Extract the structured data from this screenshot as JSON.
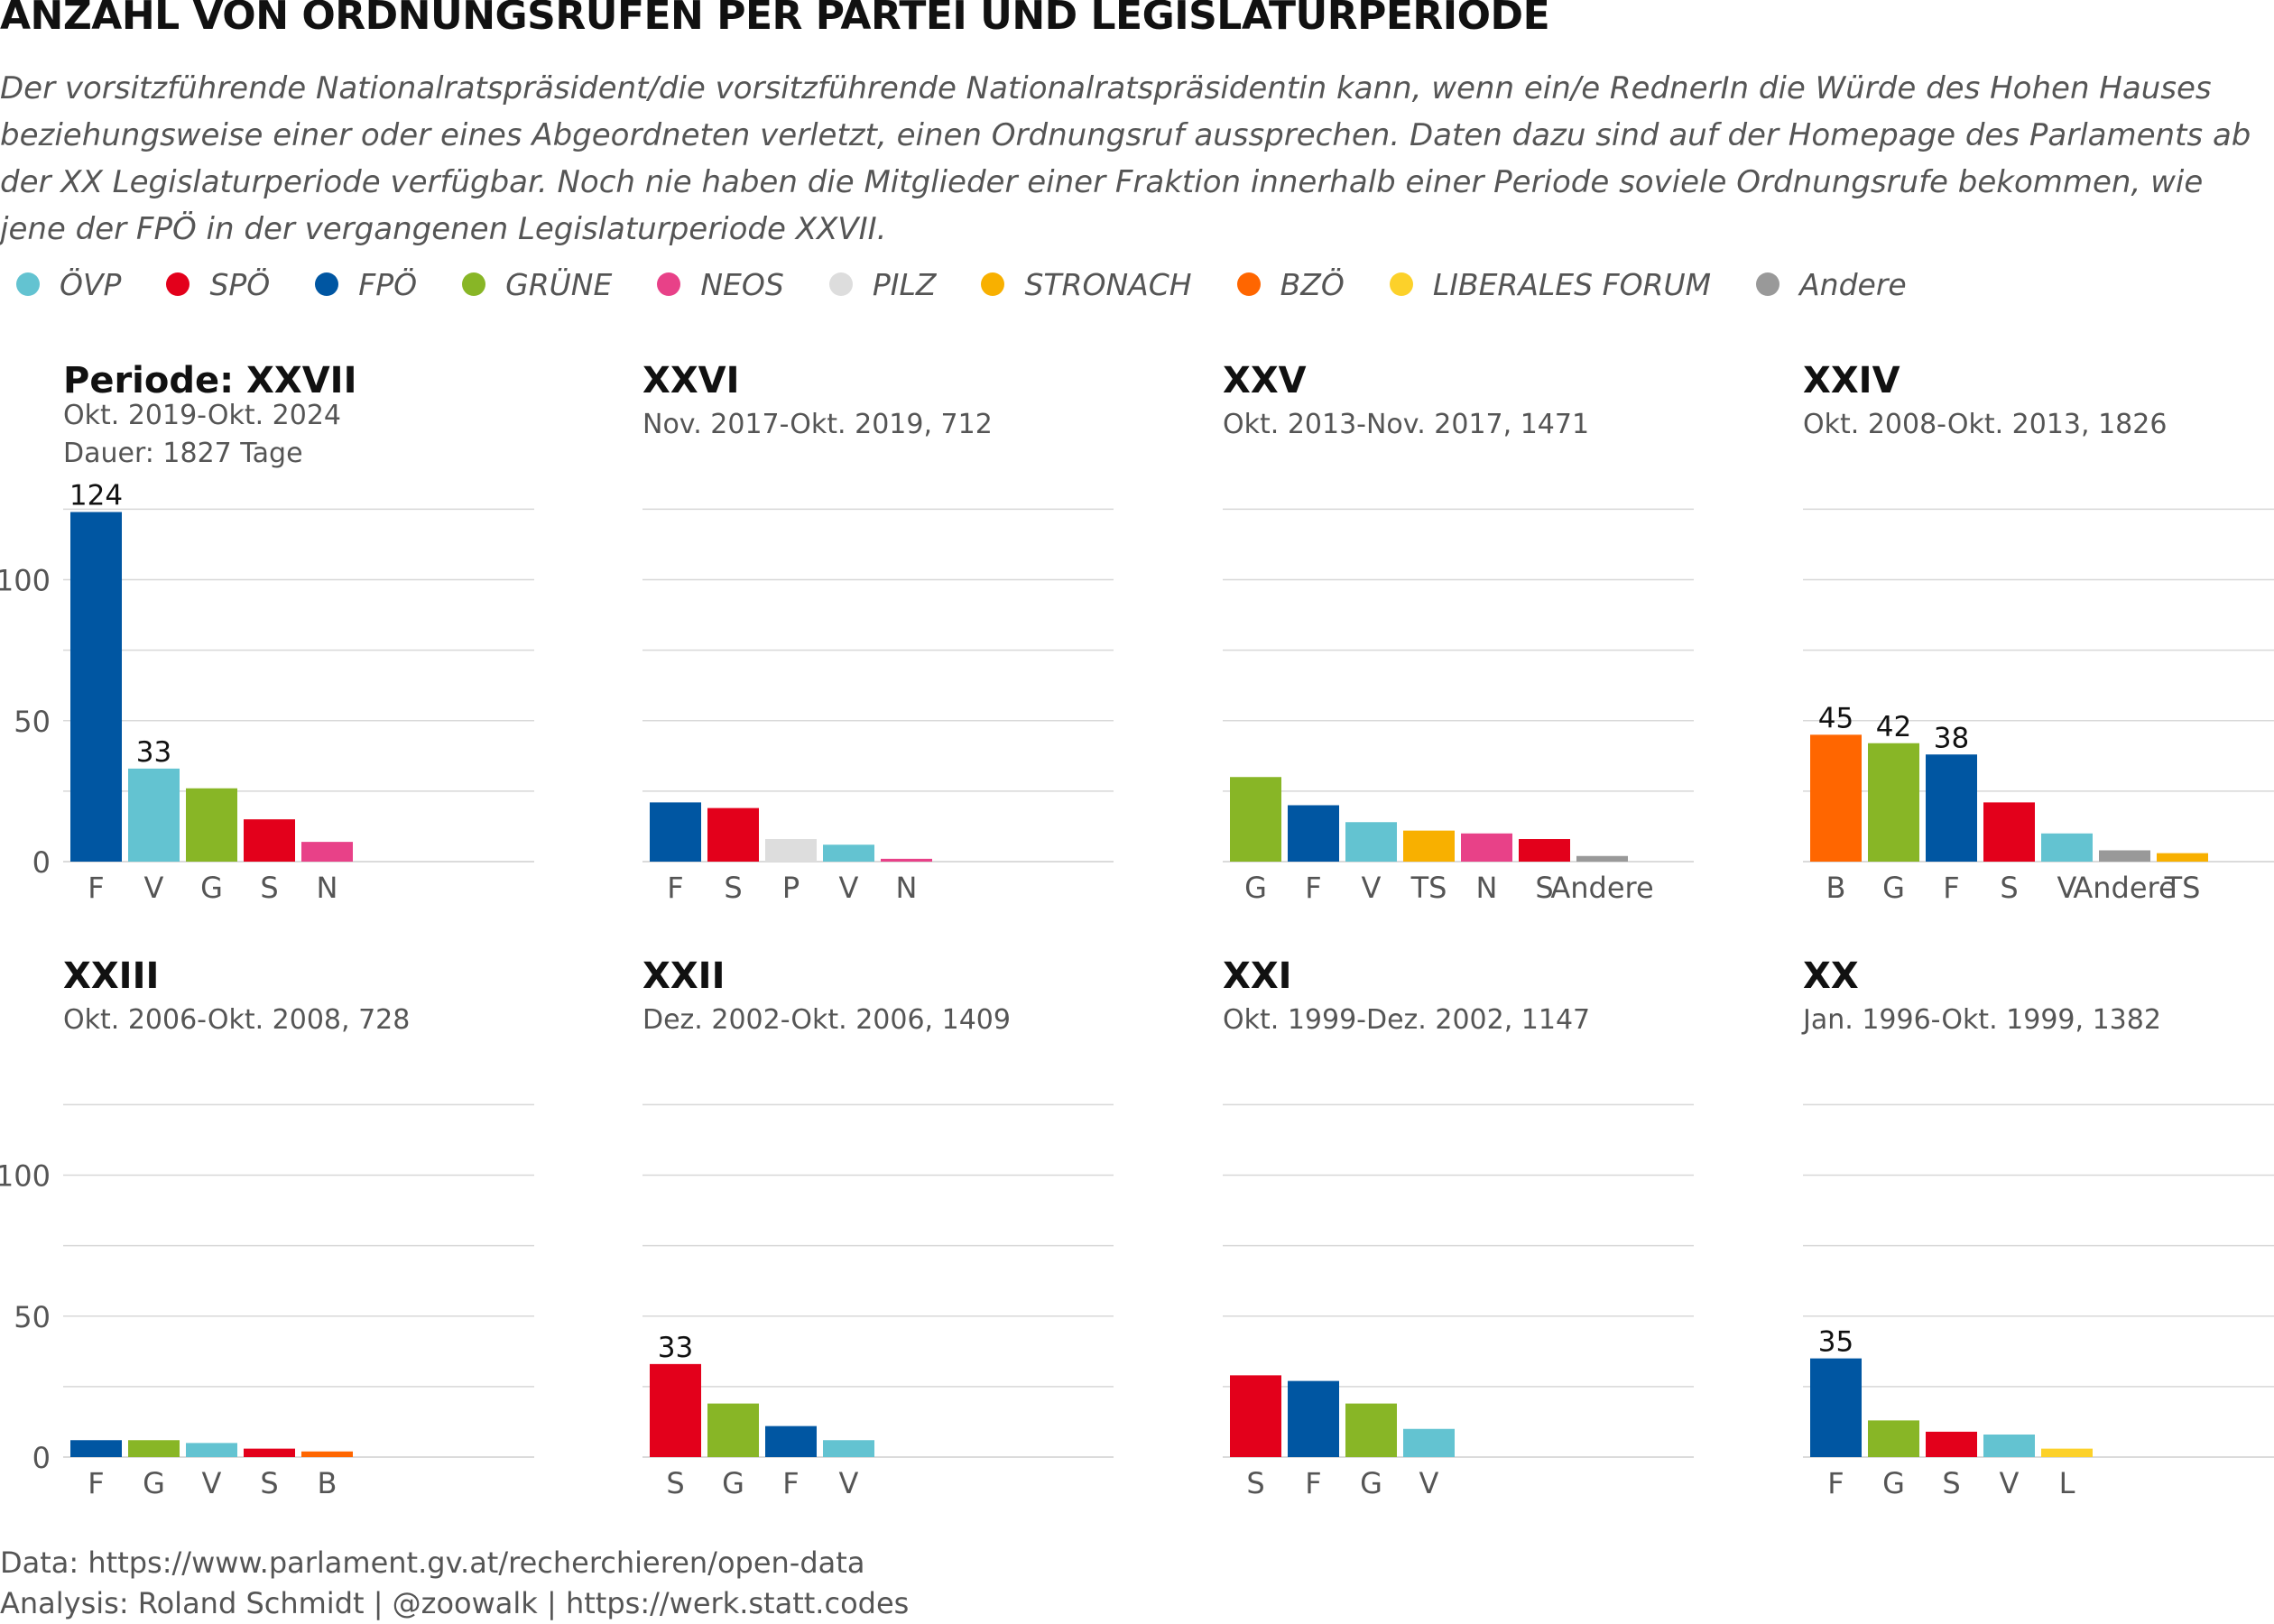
{
  "title": "ANZAHL VON ORDNUNGSRUFEN PER PARTEI UND LEGISLATURPERIODE",
  "subtitle": "Der vorsitzführende Nationalratspräsident/die vorsitzführende Nationalratspräsidentin kann, wenn ein/e RednerIn die Würde des Hohen Hauses beziehungsweise einer oder eines Abgeordneten verletzt, einen Ordnungsruf aussprechen. Daten dazu sind auf der Homepage des Parlaments ab der XX Legislaturperiode verfügbar. Noch nie haben die Mitglieder einer Fraktion innerhalb einer Periode soviele Ordnungsrufe bekommen, wie jene der FPÖ in der vergangenen Legislaturperiode XXVII.",
  "legend": [
    {
      "key": "V",
      "label": "ÖVP",
      "color": "#63c3d1"
    },
    {
      "key": "S",
      "label": "SPÖ",
      "color": "#e3001b"
    },
    {
      "key": "F",
      "label": "FPÖ",
      "color": "#0056a2"
    },
    {
      "key": "G",
      "label": "GRÜNE",
      "color": "#88b626"
    },
    {
      "key": "N",
      "label": "NEOS",
      "color": "#e84188"
    },
    {
      "key": "P",
      "label": "PILZ",
      "color": "#dddddd"
    },
    {
      "key": "TS",
      "label": "STRONACH",
      "color": "#f8b000"
    },
    {
      "key": "B",
      "label": "BZÖ",
      "color": "#ff6600"
    },
    {
      "key": "L",
      "label": "LIBERALES FORUM",
      "color": "#fcd12a"
    },
    {
      "key": "Andere",
      "label": "Andere",
      "color": "#999999"
    }
  ],
  "footer": {
    "data_source": "Data: https://www.parlament.gv.at/recherchieren/open-data",
    "analysis": "Analysis: Roland Schmidt | @zoowalk | https://werk.statt.codes"
  },
  "chart_data": {
    "type": "bar",
    "layout": "small-multiples",
    "y_ticks": [
      0,
      50,
      100
    ],
    "ylim": [
      0,
      128
    ],
    "grid": true,
    "legend_position": "top",
    "panels": [
      {
        "title": "Periode: XXVII",
        "subtitle": "Okt. 2019-Okt. 2024",
        "subtitle2": "Dauer: 1827 Tage",
        "categories": [
          "F",
          "V",
          "G",
          "S",
          "N"
        ],
        "values": [
          124,
          33,
          26,
          15,
          7
        ],
        "labels": [
          "124",
          "33",
          "",
          "",
          ""
        ]
      },
      {
        "title": "XXVI",
        "subtitle": "Nov. 2017-Okt. 2019, 712",
        "categories": [
          "F",
          "S",
          "P",
          "V",
          "N"
        ],
        "values": [
          21,
          19,
          8,
          6,
          1
        ],
        "labels": [
          "",
          "",
          "",
          "",
          ""
        ]
      },
      {
        "title": "XXV",
        "subtitle": "Okt. 2013-Nov. 2017, 1471",
        "categories": [
          "G",
          "F",
          "V",
          "TS",
          "N",
          "S",
          "Andere"
        ],
        "values": [
          30,
          20,
          14,
          11,
          10,
          8,
          2
        ],
        "labels": [
          "",
          "",
          "",
          "",
          "",
          "",
          ""
        ]
      },
      {
        "title": "XXIV",
        "subtitle": "Okt. 2008-Okt. 2013, 1826",
        "categories": [
          "B",
          "G",
          "F",
          "S",
          "V",
          "Andere",
          "TS"
        ],
        "values": [
          45,
          42,
          38,
          21,
          10,
          4,
          3
        ],
        "labels": [
          "45",
          "42",
          "38",
          "",
          "",
          "",
          ""
        ]
      },
      {
        "title": "XXIII",
        "subtitle": "Okt. 2006-Okt. 2008, 728",
        "categories": [
          "F",
          "G",
          "V",
          "S",
          "B"
        ],
        "values": [
          6,
          6,
          5,
          3,
          2
        ],
        "labels": [
          "",
          "",
          "",
          "",
          ""
        ]
      },
      {
        "title": "XXII",
        "subtitle": "Dez. 2002-Okt. 2006, 1409",
        "categories": [
          "S",
          "G",
          "F",
          "V"
        ],
        "values": [
          33,
          19,
          11,
          6
        ],
        "labels": [
          "33",
          "",
          "",
          ""
        ]
      },
      {
        "title": "XXI",
        "subtitle": "Okt. 1999-Dez. 2002, 1147",
        "categories": [
          "S",
          "F",
          "G",
          "V"
        ],
        "values": [
          29,
          27,
          19,
          10
        ],
        "labels": [
          "",
          "",
          "",
          ""
        ]
      },
      {
        "title": "XX",
        "subtitle": "Jan. 1996-Okt. 1999, 1382",
        "categories": [
          "F",
          "G",
          "S",
          "V",
          "L"
        ],
        "values": [
          35,
          13,
          9,
          8,
          3
        ],
        "labels": [
          "35",
          "",
          "",
          "",
          ""
        ]
      }
    ]
  }
}
